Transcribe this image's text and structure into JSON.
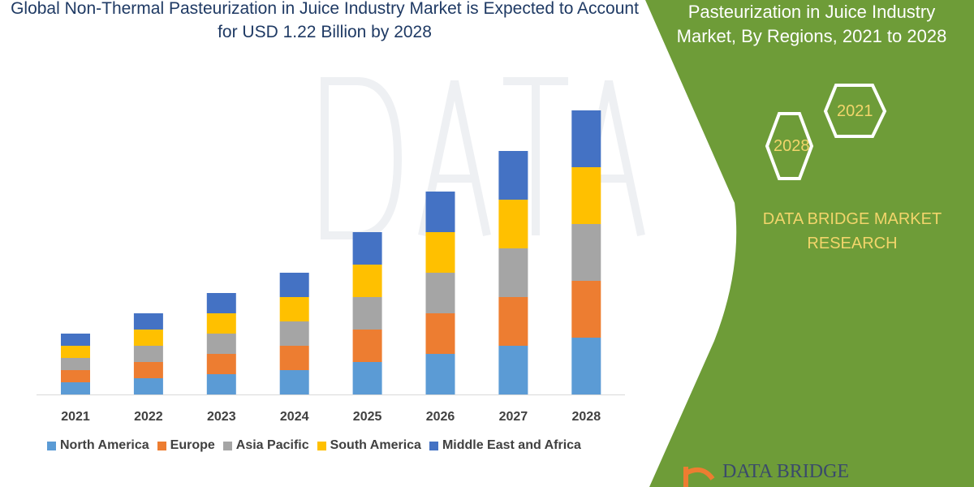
{
  "title": "Global Non-Thermal Pasteurization in Juice Industry Market is Expected to Account for USD 1.22 Billion by 2028",
  "panel": {
    "title_line1": "Pasteurization in Juice Industry",
    "title_line2": "Market, By Regions, 2021 to 2028",
    "hex_2021": "2021",
    "hex_2028": "2028",
    "brand_line1": "DATA BRIDGE MARKET",
    "brand_line2": "RESEARCH",
    "logo_text": "DATA BRIDGE",
    "green": "#6e9c38",
    "text_yellow": "#f2d56b"
  },
  "chart_data": {
    "type": "bar",
    "stacked": true,
    "categories": [
      "2021",
      "2022",
      "2023",
      "2024",
      "2025",
      "2026",
      "2027",
      "2028"
    ],
    "series": [
      {
        "name": "North America",
        "color": "#5b9bd5",
        "values": [
          15,
          20,
          25,
          30,
          40,
          50,
          60,
          70
        ]
      },
      {
        "name": "Europe",
        "color": "#ed7d31",
        "values": [
          15,
          20,
          25,
          30,
          40,
          50,
          60,
          70
        ]
      },
      {
        "name": "Asia Pacific",
        "color": "#a5a5a5",
        "values": [
          15,
          20,
          25,
          30,
          40,
          50,
          60,
          70
        ]
      },
      {
        "name": "South America",
        "color": "#ffc000",
        "values": [
          15,
          20,
          25,
          30,
          40,
          50,
          60,
          70
        ]
      },
      {
        "name": "Middle East and Africa",
        "color": "#4472c4",
        "values": [
          15,
          20,
          25,
          30,
          40,
          50,
          60,
          70
        ]
      }
    ],
    "grid": false,
    "legend": "bottom"
  }
}
